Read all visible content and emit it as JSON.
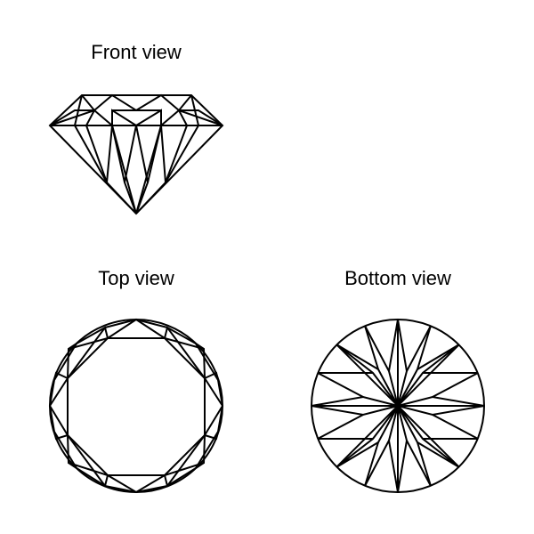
{
  "figure": {
    "front": {
      "title": "Front view"
    },
    "top": {
      "title": "Top view"
    },
    "bottom": {
      "title": "Bottom view"
    },
    "colors": {
      "ink": "#000000",
      "background": "#ffffff"
    }
  }
}
